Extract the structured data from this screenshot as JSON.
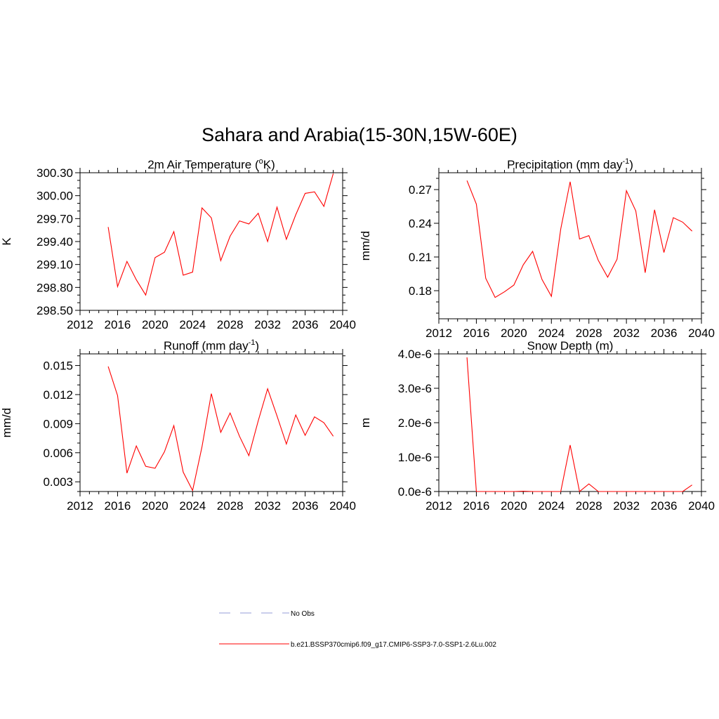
{
  "figure": {
    "title": "Sahara and Arabia(15-30N,15W-60E)"
  },
  "legend": {
    "items": [
      {
        "label": "No Obs",
        "color": "#aab0e0",
        "dash": true
      },
      {
        "label": "b.e21.BSSP370cmip6.f09_g17.CMIP6-SSP3-7.0-SSP1-2.6Lu.002",
        "color": "#ff0000",
        "dash": false
      }
    ]
  },
  "chart_data": [
    {
      "type": "line",
      "title": "2m Air Temperature (",
      "title_sup": "o",
      "title_end": "K)",
      "ylabel": "K",
      "xlim": [
        2012,
        2040
      ],
      "ylim": [
        298.5,
        300.3
      ],
      "xticks": [
        2012,
        2016,
        2020,
        2024,
        2028,
        2032,
        2036,
        2040
      ],
      "xtick_labels": [
        "2012",
        "2016",
        "2020",
        "2024",
        "2028",
        "2032",
        "2036",
        "2040"
      ],
      "yticks": [
        298.5,
        298.8,
        299.1,
        299.4,
        299.7,
        300.0,
        300.3
      ],
      "ytick_labels": [
        "298.50",
        "298.80",
        "299.10",
        "299.40",
        "299.70",
        "300.00",
        "300.30"
      ],
      "color": "#ff0000",
      "x": [
        2015,
        2016,
        2017,
        2018,
        2019,
        2020,
        2021,
        2022,
        2023,
        2024,
        2025,
        2026,
        2027,
        2028,
        2029,
        2030,
        2031,
        2032,
        2033,
        2034,
        2035,
        2036,
        2037,
        2038,
        2039
      ],
      "y": [
        299.59,
        298.81,
        299.14,
        298.9,
        298.7,
        299.19,
        299.26,
        299.53,
        298.96,
        299.0,
        299.84,
        299.71,
        299.15,
        299.47,
        299.67,
        299.63,
        299.77,
        299.4,
        299.85,
        299.43,
        299.75,
        300.03,
        300.05,
        299.86,
        300.29
      ]
    },
    {
      "type": "line",
      "title": "Precipitation (mm day",
      "title_sup": "-1",
      "title_end": ")",
      "ylabel": "mm/d",
      "xlim": [
        2012,
        2040
      ],
      "ylim": [
        0.155,
        0.285
      ],
      "xticks": [
        2012,
        2016,
        2020,
        2024,
        2028,
        2032,
        2036,
        2040
      ],
      "xtick_labels": [
        "2012",
        "2016",
        "2020",
        "2024",
        "2028",
        "2032",
        "2036",
        "2040"
      ],
      "yticks": [
        0.18,
        0.21,
        0.24,
        0.27
      ],
      "ytick_labels": [
        "0.18",
        "0.21",
        "0.24",
        "0.27"
      ],
      "color": "#ff0000",
      "x": [
        2015,
        2016,
        2017,
        2018,
        2019,
        2020,
        2021,
        2022,
        2023,
        2024,
        2025,
        2026,
        2027,
        2028,
        2029,
        2030,
        2031,
        2032,
        2033,
        2034,
        2035,
        2036,
        2037,
        2038,
        2039
      ],
      "y": [
        0.278,
        0.257,
        0.191,
        0.174,
        0.179,
        0.185,
        0.203,
        0.215,
        0.19,
        0.175,
        0.235,
        0.277,
        0.226,
        0.229,
        0.207,
        0.192,
        0.208,
        0.269,
        0.251,
        0.196,
        0.252,
        0.214,
        0.245,
        0.241,
        0.233
      ]
    },
    {
      "type": "line",
      "title": "Runoff (mm day",
      "title_sup": "-1",
      "title_end": ")",
      "ylabel": "mm/d",
      "xlim": [
        2012,
        2040
      ],
      "ylim": [
        0.002,
        0.0162
      ],
      "xticks": [
        2012,
        2016,
        2020,
        2024,
        2028,
        2032,
        2036,
        2040
      ],
      "xtick_labels": [
        "2012",
        "2016",
        "2020",
        "2024",
        "2028",
        "2032",
        "2036",
        "2040"
      ],
      "yticks": [
        0.003,
        0.006,
        0.009,
        0.012,
        0.015
      ],
      "ytick_labels": [
        "0.003",
        "0.006",
        "0.009",
        "0.012",
        "0.015"
      ],
      "color": "#ff0000",
      "x": [
        2015,
        2016,
        2017,
        2018,
        2019,
        2020,
        2021,
        2022,
        2023,
        2024,
        2025,
        2026,
        2027,
        2028,
        2029,
        2030,
        2031,
        2032,
        2033,
        2034,
        2035,
        2036,
        2037,
        2038,
        2039
      ],
      "y": [
        0.0149,
        0.0119,
        0.0039,
        0.0067,
        0.0046,
        0.0044,
        0.0061,
        0.0088,
        0.004,
        0.0021,
        0.0066,
        0.0121,
        0.0081,
        0.0101,
        0.0077,
        0.0057,
        0.0093,
        0.0126,
        0.0098,
        0.0069,
        0.0099,
        0.0078,
        0.0097,
        0.0091,
        0.0077
      ]
    },
    {
      "type": "line",
      "title": "Snow Depth (m)",
      "title_sup": "",
      "title_end": "",
      "ylabel": "m",
      "xlim": [
        2012,
        2040
      ],
      "ylim": [
        0.0,
        4e-06
      ],
      "xticks": [
        2012,
        2016,
        2020,
        2024,
        2028,
        2032,
        2036,
        2040
      ],
      "xtick_labels": [
        "2012",
        "2016",
        "2020",
        "2024",
        "2028",
        "2032",
        "2036",
        "2040"
      ],
      "yticks": [
        0.0,
        1e-06,
        2e-06,
        3e-06,
        4e-06
      ],
      "ytick_labels": [
        "0.0e-6",
        "1.0e-6",
        "2.0e-6",
        "3.0e-6",
        "4.0e-6"
      ],
      "color": "#ff0000",
      "x": [
        2015,
        2016,
        2017,
        2018,
        2019,
        2020,
        2021,
        2022,
        2023,
        2024,
        2025,
        2026,
        2027,
        2028,
        2029,
        2030,
        2031,
        2032,
        2033,
        2034,
        2035,
        2036,
        2037,
        2038,
        2039
      ],
      "y": [
        3.9e-06,
        0,
        0,
        0,
        0,
        0,
        1e-08,
        0,
        0,
        0,
        0,
        1.35e-06,
        0,
        2.2e-07,
        0,
        0,
        0,
        0,
        0,
        0,
        0,
        0,
        0,
        0,
        1.9e-07
      ]
    }
  ]
}
